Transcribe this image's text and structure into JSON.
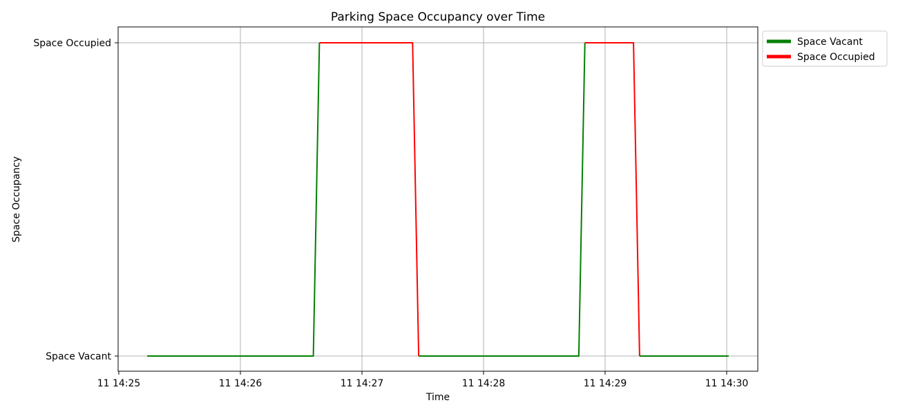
{
  "chart_data": {
    "type": "line",
    "title": "Parking Space Occupancy over Time",
    "xlabel": "Time",
    "ylabel": "Space Occupancy",
    "x_ticks": [
      "11 14:25",
      "11 14:26",
      "11 14:27",
      "11 14:28",
      "11 14:29",
      "11 14:30"
    ],
    "y_ticks": [
      "Space Vacant",
      "Space Occupied"
    ],
    "ylim": [
      -0.05,
      1.05
    ],
    "grid": true,
    "legend_position": "outside-top-right",
    "colors": {
      "vacant": "#008000",
      "occupied": "#ff0000"
    },
    "series": [
      {
        "name": "Space Vacant",
        "color": "#008000",
        "segments": [
          [
            [
              "11 14:25:14",
              0
            ],
            [
              "11 14:26:36",
              0
            ],
            [
              "11 14:26:39",
              1
            ]
          ],
          [
            [
              "11 14:27:28",
              0
            ],
            [
              "11 14:28:47",
              0
            ],
            [
              "11 14:28:50",
              1
            ]
          ],
          [
            [
              "11 14:29:17",
              0
            ],
            [
              "11 14:30:01",
              0
            ]
          ]
        ]
      },
      {
        "name": "Space Occupied",
        "color": "#ff0000",
        "segments": [
          [
            [
              "11 14:26:39",
              1
            ],
            [
              "11 14:27:25",
              1
            ],
            [
              "11 14:27:28",
              0
            ]
          ],
          [
            [
              "11 14:28:50",
              1
            ],
            [
              "11 14:29:14",
              1
            ],
            [
              "11 14:29:17",
              0
            ]
          ]
        ]
      }
    ]
  }
}
